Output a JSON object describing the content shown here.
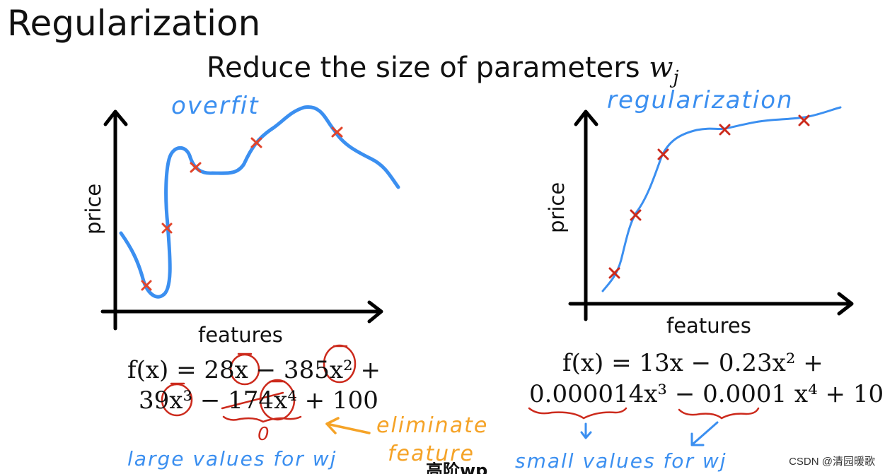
{
  "slide": {
    "title": "Regularization",
    "subtitle_prefix": "Reduce the size of parameters",
    "subtitle_var": "w",
    "subtitle_sub": "j"
  },
  "left_plot": {
    "annotation": "overfit",
    "xlabel": "features",
    "ylabel": "price"
  },
  "right_plot": {
    "annotation": "regularization",
    "xlabel": "features",
    "ylabel": "price"
  },
  "left_equation": {
    "line1": "f(x) = 28x − 385x² +",
    "line2": "39x³ − 174x⁴ + 100"
  },
  "right_equation": {
    "line1": "f(x) = 13x − 0.23x² +",
    "line2": "0.000014x³ − 0.0001 x⁴ + 10"
  },
  "notes": {
    "zero": "0",
    "eliminate": "eliminate",
    "feature": "feature",
    "large_values": "large values for wj",
    "small_values": "small values for wj"
  },
  "colors": {
    "curve": "#3b8ff0",
    "marker": "#e2452b",
    "orange_note": "#f5a327",
    "red_note": "#cc2a1c"
  },
  "watermark": "CSDN @清园暖歌",
  "caption_fragment": "高阶wp"
}
